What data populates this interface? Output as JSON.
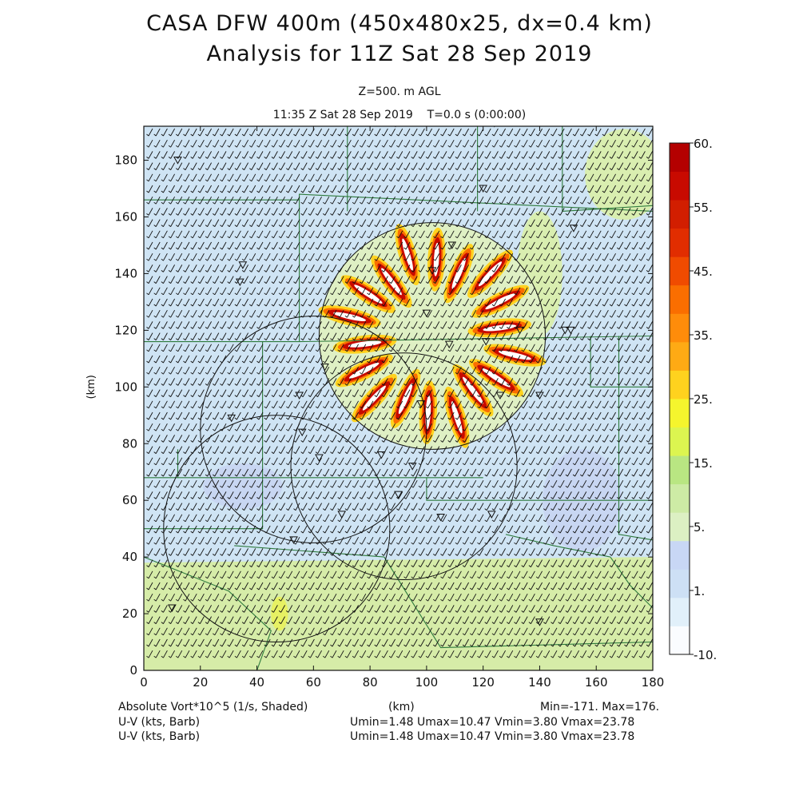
{
  "header": {
    "title_line1": "CASA DFW 400m (450x480x25, dx=0.4 km)",
    "title_line2": "Analysis for 11Z Sat 28 Sep 2019",
    "level": "Z=500. m AGL",
    "valid_time": "11:35 Z Sat 28 Sep 2019",
    "forecast_time": "T=0.0 s (0:00:00)"
  },
  "footer": {
    "field_label": "Absolute Vort*10^5 (1/s, Shaded)",
    "x_unit": "(km)",
    "minmax": "Min=-171. Max=176.",
    "barb1_label": "U-V (kts, Barb)",
    "barb1_stats": "Umin=1.48 Umax=10.47 Vmin=3.80 Vmax=23.78",
    "barb2_label": "U-V (kts, Barb)",
    "barb2_stats": "Umin=1.48 Umax=10.47 Vmin=3.80 Vmax=23.78"
  },
  "chart_data": {
    "type": "heatmap",
    "xlabel": "(km)",
    "ylabel": "(km)",
    "xlim": [
      0,
      180
    ],
    "ylim": [
      0,
      192
    ],
    "x_ticks": [
      "0",
      "20",
      "40",
      "60",
      "80",
      "100",
      "120",
      "140",
      "160",
      "180"
    ],
    "y_ticks": [
      "0",
      "20",
      "40",
      "60",
      "80",
      "100",
      "120",
      "140",
      "160",
      "180"
    ],
    "colorbar": {
      "labels": [
        "60.",
        "55.",
        "45.",
        "35.",
        "25.",
        "15.",
        "5.",
        "1.",
        "-10."
      ],
      "colors": [
        "#fafcff",
        "#e1f0fa",
        "#cde0f5",
        "#c8d7f5",
        "#dcf0c3",
        "#cdeba5",
        "#b9e682",
        "#dcf550",
        "#f5f52d",
        "#ffd21e",
        "#ffaa14",
        "#ff8c0a",
        "#fa6e00",
        "#f04b00",
        "#e12d00",
        "#d21e00",
        "#c80a00",
        "#b40000"
      ]
    },
    "radar_rings": [
      {
        "center": [
          102,
          118
        ],
        "radius": 40
      },
      {
        "center": [
          60,
          85
        ],
        "radius": 40
      },
      {
        "center": [
          92,
          72
        ],
        "radius": 40
      },
      {
        "center": [
          47,
          50
        ],
        "radius": 40
      }
    ],
    "vortex_center": [
      102,
      118
    ],
    "field_min": -171,
    "field_max": 176
  }
}
